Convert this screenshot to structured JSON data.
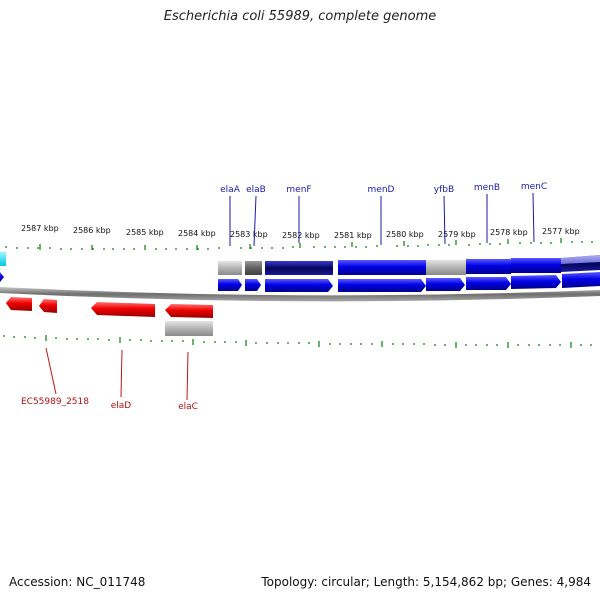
{
  "title": "Escherichia coli 55989, complete genome",
  "footer": {
    "accession": "Accession: NC_011748",
    "summary": "Topology: circular; Length: 5,154,862 bp; Genes: 4,984"
  },
  "colors": {
    "forward_gene": "#0000e6",
    "reverse_gene": "#ee0000",
    "highlight": "#00e5ff",
    "tick": "#1a8a1a",
    "backbone": "#8a8a8a",
    "grey_feature": "#b4b4b4"
  },
  "scale": {
    "labels": [
      "2587 kbp",
      "2586 kbp",
      "2585 kbp",
      "2584 kbp",
      "2583 kbp",
      "2582 kbp",
      "2581 kbp",
      "2580 kbp",
      "2579 kbp",
      "2578 kbp",
      "2577 kbp"
    ]
  },
  "forward_labels": [
    "elaA",
    "elaB",
    "menF",
    "menD",
    "yfbB",
    "menB",
    "menC"
  ],
  "reverse_labels": [
    "EC55989_2518",
    "elaD",
    "elaC"
  ]
}
